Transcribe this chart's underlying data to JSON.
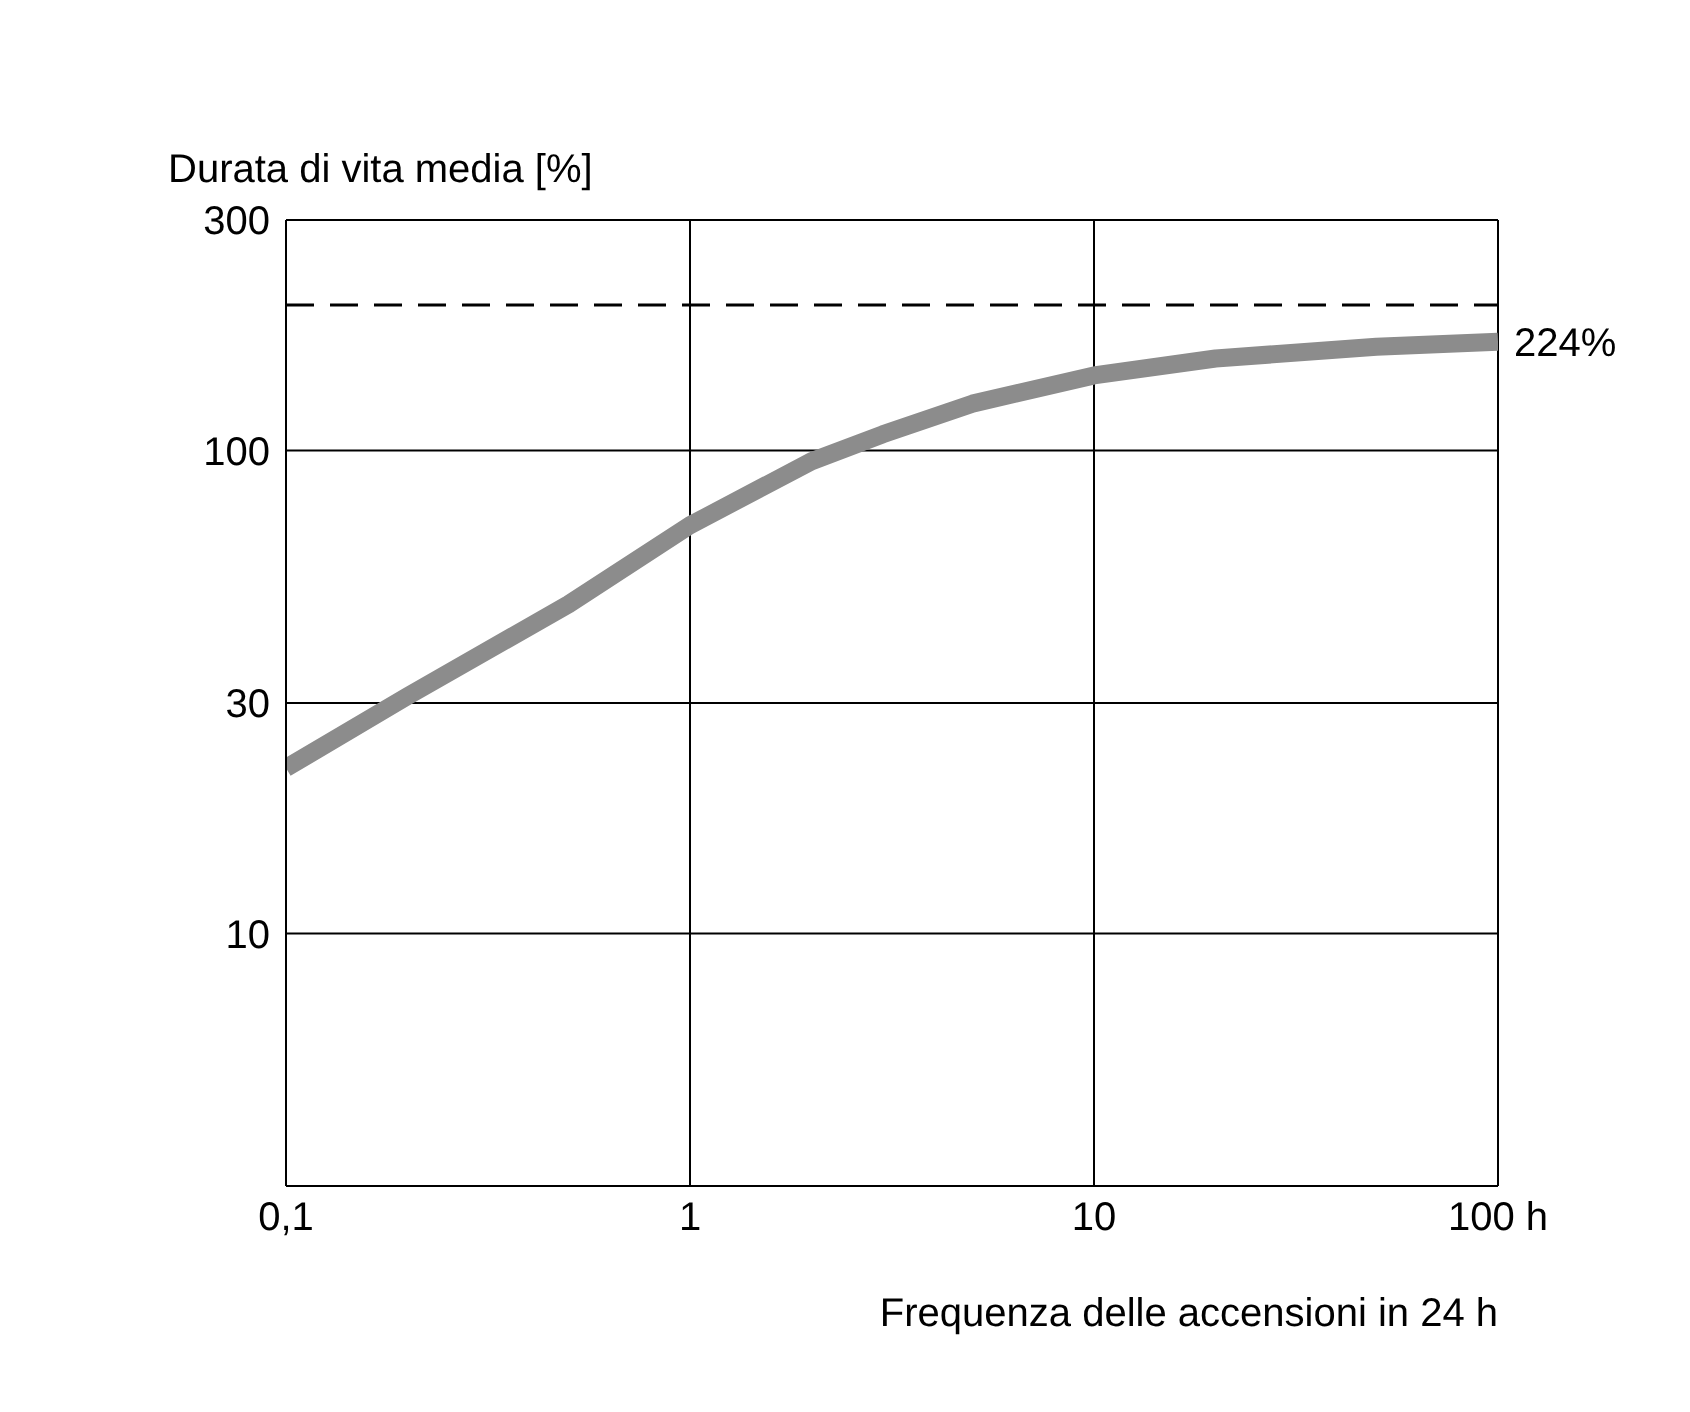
{
  "chart_data": {
    "type": "line",
    "xlabel": "Frequenza delle accensioni in 24 h",
    "ylabel": "Durata di vita media [%]",
    "x": [
      0.1,
      0.2,
      0.5,
      1,
      2,
      3,
      5,
      10,
      20,
      50,
      100
    ],
    "series": [
      {
        "color": "#8c8c8c",
        "values": [
          22,
          31,
          48,
          70,
          95,
          108,
          125,
          143,
          155,
          164,
          168
        ]
      }
    ],
    "log": "xy",
    "xlim": [
      0.1,
      100
    ],
    "xticks": [
      {
        "value": 0.1,
        "label": "0,1"
      },
      1,
      10,
      {
        "value": 100,
        "label": "100 h"
      }
    ],
    "ylim": [
      3,
      300
    ],
    "yticks": [
      10,
      30,
      100,
      300
    ],
    "grid": true,
    "marker": "none",
    "line_style": "solid",
    "ref_lines": [
      {
        "axis": "y",
        "value": 200,
        "color": "#000000",
        "line_style": "dashed"
      }
    ],
    "annotations": [
      "224%"
    ]
  }
}
